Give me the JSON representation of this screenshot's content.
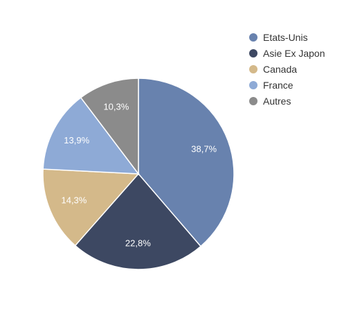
{
  "chart_data": {
    "type": "pie",
    "categories": [
      "Etats-Unis",
      "Asie Ex Japon",
      "Canada",
      "France",
      "Autres"
    ],
    "values": [
      38.7,
      22.8,
      14.3,
      13.9,
      10.3
    ],
    "value_labels": [
      "38,7%",
      "22,8%",
      "14,3%",
      "13,9%",
      "10,3%"
    ],
    "colors": [
      "#6882ae",
      "#3d4862",
      "#d4b98a",
      "#8eaad6",
      "#8b8b8b"
    ],
    "start": "top",
    "direction": "clockwise",
    "legend_position": "top-right"
  }
}
